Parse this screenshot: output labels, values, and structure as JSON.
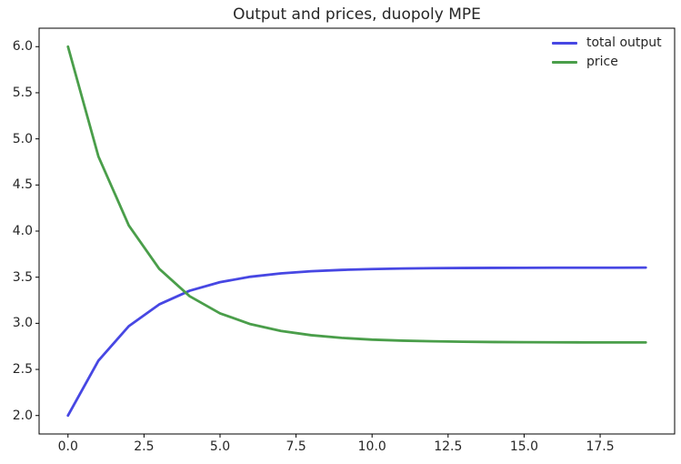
{
  "chart_data": {
    "type": "line",
    "title": "Output and prices, duopoly MPE",
    "xlabel": "",
    "ylabel": "",
    "x": [
      0,
      1,
      2,
      3,
      4,
      5,
      6,
      7,
      8,
      9,
      10,
      11,
      12,
      13,
      14,
      15,
      16,
      17,
      18,
      19
    ],
    "series": [
      {
        "name": "total output",
        "color": "#4747e3",
        "values": [
          2.0,
          2.595,
          2.969,
          3.205,
          3.353,
          3.446,
          3.505,
          3.541,
          3.565,
          3.579,
          3.588,
          3.594,
          3.598,
          3.6,
          3.601,
          3.602,
          3.603,
          3.603,
          3.603,
          3.604
        ]
      },
      {
        "name": "price",
        "color": "#4a9e4a",
        "values": [
          6.0,
          4.81,
          4.061,
          3.591,
          3.294,
          3.108,
          2.991,
          2.917,
          2.871,
          2.842,
          2.823,
          2.812,
          2.805,
          2.8,
          2.797,
          2.795,
          2.794,
          2.793,
          2.793,
          2.793
        ]
      }
    ],
    "xlim": [
      -0.95,
      19.95
    ],
    "ylim": [
      1.8,
      6.2
    ],
    "xticks": [
      0,
      2.5,
      5,
      7.5,
      10,
      12.5,
      15,
      17.5
    ],
    "xtick_labels": [
      "0.0",
      "2.5",
      "5.0",
      "7.5",
      "10.0",
      "12.5",
      "15.0",
      "17.5"
    ],
    "yticks": [
      2.0,
      2.5,
      3.0,
      3.5,
      4.0,
      4.5,
      5.0,
      5.5,
      6.0
    ],
    "ytick_labels": [
      "2.0",
      "2.5",
      "3.0",
      "3.5",
      "4.0",
      "4.5",
      "5.0",
      "5.5",
      "6.0"
    ],
    "grid": false,
    "legend": {
      "position": "upper right",
      "frame": false
    },
    "colors": {
      "background": "#ffffff",
      "axis": "#000000",
      "text": "#262626"
    }
  }
}
